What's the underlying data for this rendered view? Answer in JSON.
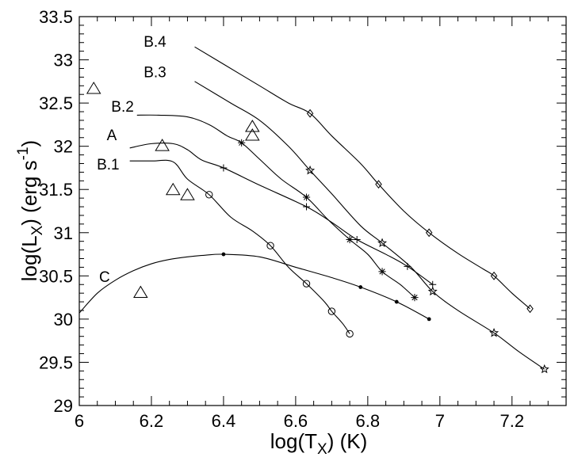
{
  "chart_data": {
    "type": "line",
    "title": "",
    "xlabel": "log(T_X) (K)",
    "ylabel": "log(L_X) (erg s^-1)",
    "xlim": [
      6.0,
      7.35
    ],
    "ylim": [
      29.0,
      33.5
    ],
    "x_ticks": [
      6.0,
      6.2,
      6.4,
      6.6,
      6.8,
      7.0,
      7.2
    ],
    "x_tick_labels": [
      "6",
      "6.2",
      "6.4",
      "6.6",
      "6.8",
      "7",
      "7.2"
    ],
    "y_ticks": [
      29.0,
      29.5,
      30.0,
      30.5,
      31.0,
      31.5,
      32.0,
      32.5,
      33.0,
      33.5
    ],
    "y_tick_labels": [
      "29",
      "29.5",
      "30",
      "30.5",
      "31",
      "31.5",
      "32",
      "32.5",
      "33",
      "33.5"
    ],
    "grid": false,
    "series": [
      {
        "name": "B.4",
        "marker": "diamond",
        "label_at": [
          6.21,
          33.15
        ],
        "curve": [
          [
            6.32,
            33.15
          ],
          [
            6.4,
            32.95
          ],
          [
            6.5,
            32.7
          ],
          [
            6.58,
            32.5
          ],
          [
            6.64,
            32.38
          ],
          [
            6.7,
            32.12
          ],
          [
            6.78,
            31.8
          ],
          [
            6.83,
            31.56
          ],
          [
            6.9,
            31.25
          ],
          [
            6.97,
            31.0
          ],
          [
            7.05,
            30.76
          ],
          [
            7.12,
            30.58
          ],
          [
            7.15,
            30.5
          ],
          [
            7.2,
            30.3
          ],
          [
            7.25,
            30.12
          ]
        ],
        "markers": [
          [
            6.64,
            32.38
          ],
          [
            6.83,
            31.56
          ],
          [
            6.97,
            31.0
          ],
          [
            7.15,
            30.5
          ],
          [
            7.25,
            30.12
          ]
        ]
      },
      {
        "name": "B.3",
        "marker": "star",
        "label_at": [
          6.21,
          32.8
        ],
        "curve": [
          [
            6.32,
            32.75
          ],
          [
            6.42,
            32.5
          ],
          [
            6.5,
            32.3
          ],
          [
            6.58,
            32.0
          ],
          [
            6.64,
            31.72
          ],
          [
            6.7,
            31.45
          ],
          [
            6.78,
            31.08
          ],
          [
            6.84,
            30.88
          ],
          [
            6.92,
            30.6
          ],
          [
            6.98,
            30.32
          ],
          [
            7.05,
            30.1
          ],
          [
            7.15,
            29.84
          ],
          [
            7.22,
            29.62
          ],
          [
            7.29,
            29.42
          ]
        ],
        "markers": [
          [
            6.64,
            31.72
          ],
          [
            6.84,
            30.88
          ],
          [
            6.98,
            30.32
          ],
          [
            7.15,
            29.84
          ],
          [
            7.29,
            29.42
          ]
        ]
      },
      {
        "name": "B.2",
        "marker": "asterisk",
        "label_at": [
          6.12,
          32.4
        ],
        "curve": [
          [
            6.16,
            32.36
          ],
          [
            6.22,
            32.36
          ],
          [
            6.3,
            32.34
          ],
          [
            6.36,
            32.25
          ],
          [
            6.41,
            32.12
          ],
          [
            6.45,
            32.04
          ],
          [
            6.5,
            31.85
          ],
          [
            6.56,
            31.62
          ],
          [
            6.63,
            31.41
          ],
          [
            6.69,
            31.15
          ],
          [
            6.75,
            30.92
          ],
          [
            6.8,
            30.75
          ],
          [
            6.84,
            30.55
          ],
          [
            6.89,
            30.4
          ],
          [
            6.93,
            30.25
          ]
        ],
        "markers": [
          [
            6.45,
            32.04
          ],
          [
            6.63,
            31.41
          ],
          [
            6.75,
            30.92
          ],
          [
            6.84,
            30.55
          ],
          [
            6.93,
            30.25
          ]
        ]
      },
      {
        "name": "A",
        "marker": "plus",
        "label_at": [
          6.09,
          32.07
        ],
        "curve": [
          [
            6.14,
            31.98
          ],
          [
            6.2,
            32.03
          ],
          [
            6.26,
            32.03
          ],
          [
            6.3,
            31.96
          ],
          [
            6.34,
            31.84
          ],
          [
            6.4,
            31.75
          ],
          [
            6.5,
            31.55
          ],
          [
            6.63,
            31.3
          ],
          [
            6.7,
            31.12
          ],
          [
            6.77,
            30.92
          ],
          [
            6.85,
            30.75
          ],
          [
            6.91,
            30.61
          ],
          [
            6.98,
            30.4
          ]
        ],
        "markers": [
          [
            6.4,
            31.75
          ],
          [
            6.63,
            31.3
          ],
          [
            6.77,
            30.92
          ],
          [
            6.91,
            30.61
          ],
          [
            6.98,
            30.4
          ]
        ]
      },
      {
        "name": "B.1",
        "marker": "circle",
        "label_at": [
          6.08,
          31.73
        ],
        "curve": [
          [
            6.14,
            31.83
          ],
          [
            6.2,
            31.83
          ],
          [
            6.26,
            31.82
          ],
          [
            6.3,
            31.62
          ],
          [
            6.36,
            31.44
          ],
          [
            6.42,
            31.18
          ],
          [
            6.48,
            31.02
          ],
          [
            6.53,
            30.85
          ],
          [
            6.58,
            30.6
          ],
          [
            6.63,
            30.41
          ],
          [
            6.68,
            30.2
          ],
          [
            6.7,
            30.09
          ],
          [
            6.73,
            29.95
          ],
          [
            6.75,
            29.83
          ]
        ],
        "markers": [
          [
            6.36,
            31.44
          ],
          [
            6.53,
            30.85
          ],
          [
            6.63,
            30.41
          ],
          [
            6.7,
            30.09
          ],
          [
            6.75,
            29.83
          ]
        ]
      },
      {
        "name": "C",
        "marker": "dot",
        "label_at": [
          6.07,
          30.43
        ],
        "curve": [
          [
            6.0,
            30.07
          ],
          [
            6.05,
            30.3
          ],
          [
            6.1,
            30.45
          ],
          [
            6.15,
            30.56
          ],
          [
            6.2,
            30.64
          ],
          [
            6.25,
            30.69
          ],
          [
            6.3,
            30.72
          ],
          [
            6.35,
            30.74
          ],
          [
            6.4,
            30.75
          ],
          [
            6.5,
            30.72
          ],
          [
            6.6,
            30.6
          ],
          [
            6.7,
            30.48
          ],
          [
            6.78,
            30.37
          ],
          [
            6.88,
            30.2
          ],
          [
            6.97,
            30.0
          ]
        ],
        "markers": [
          [
            6.4,
            30.75
          ],
          [
            6.78,
            30.37
          ],
          [
            6.88,
            30.2
          ],
          [
            6.97,
            30.0
          ]
        ]
      },
      {
        "name": "",
        "marker": "triangle",
        "curve": [],
        "markers": [
          [
            6.04,
            32.66
          ],
          [
            6.17,
            30.3
          ],
          [
            6.23,
            32.0
          ],
          [
            6.26,
            31.49
          ],
          [
            6.3,
            31.43
          ],
          [
            6.48,
            32.22
          ],
          [
            6.48,
            32.12
          ]
        ]
      }
    ]
  }
}
